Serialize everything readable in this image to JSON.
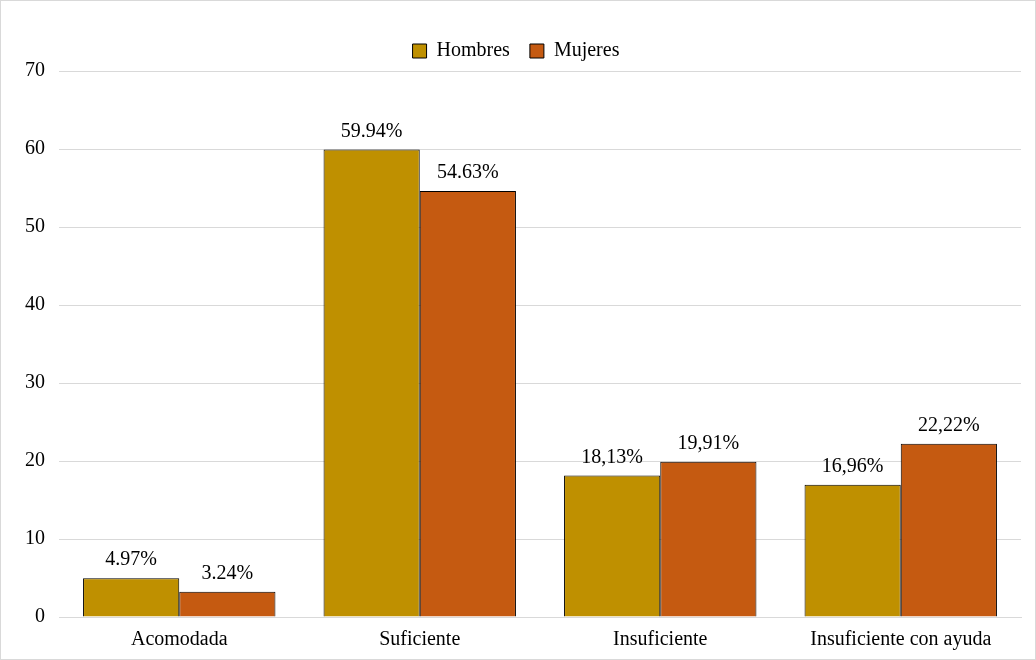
{
  "chart_data": {
    "type": "bar",
    "categories": [
      "Acomodada",
      "Suficiente",
      "Insuficiente",
      "Insuficiente con ayuda"
    ],
    "series": [
      {
        "name": "Hombres",
        "color": "#bf9000",
        "values": [
          4.97,
          59.94,
          18.13,
          16.96
        ],
        "value_labels": [
          "4.97%",
          "59.94%",
          "18,13%",
          "16,96%"
        ]
      },
      {
        "name": "Mujeres",
        "color": "#c55a11",
        "values": [
          3.24,
          54.63,
          19.91,
          22.22
        ],
        "value_labels": [
          "3.24%",
          "54.63%",
          "19,91%",
          "22,22%"
        ]
      }
    ],
    "ylim": [
      0,
      70
    ],
    "yticks": [
      0,
      10,
      20,
      30,
      40,
      50,
      60,
      70
    ],
    "grid": "y",
    "legend": "top"
  }
}
